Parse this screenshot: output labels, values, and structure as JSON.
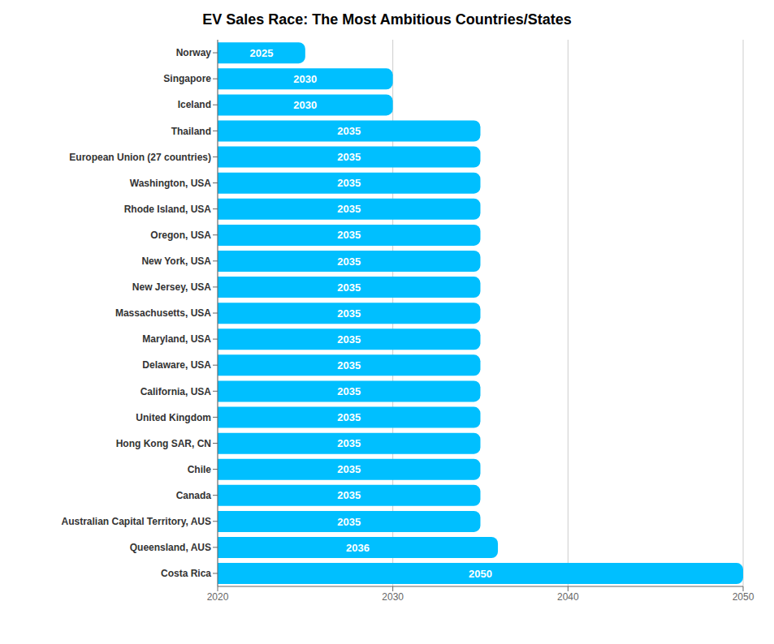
{
  "chart_data": {
    "type": "bar",
    "title": "EV Sales Race: The Most Ambitious Countries/States",
    "orientation": "horizontal",
    "categories": [
      "Costa Rica",
      "Queensland, AUS",
      "Australian Capital Territory, AUS",
      "Canada",
      "Chile",
      "Hong Kong SAR, CN",
      "United Kingdom",
      "California, USA",
      "Delaware, USA",
      "Maryland, USA",
      "Massachusetts, USA",
      "New Jersey, USA",
      "New York, USA",
      "Oregon, USA",
      "Rhode Island, USA",
      "Washington, USA",
      "European Union (27 countries)",
      "Thailand",
      "Iceland",
      "Singapore",
      "Norway"
    ],
    "values": [
      2050,
      2036,
      2035,
      2035,
      2035,
      2035,
      2035,
      2035,
      2035,
      2035,
      2035,
      2035,
      2035,
      2035,
      2035,
      2035,
      2035,
      2035,
      2030,
      2030,
      2025
    ],
    "color": "#00BFFF",
    "xlim": [
      2020,
      2050
    ],
    "xticks": [
      2020,
      2030,
      2040,
      2050
    ],
    "grid": true,
    "data_labels": true
  }
}
